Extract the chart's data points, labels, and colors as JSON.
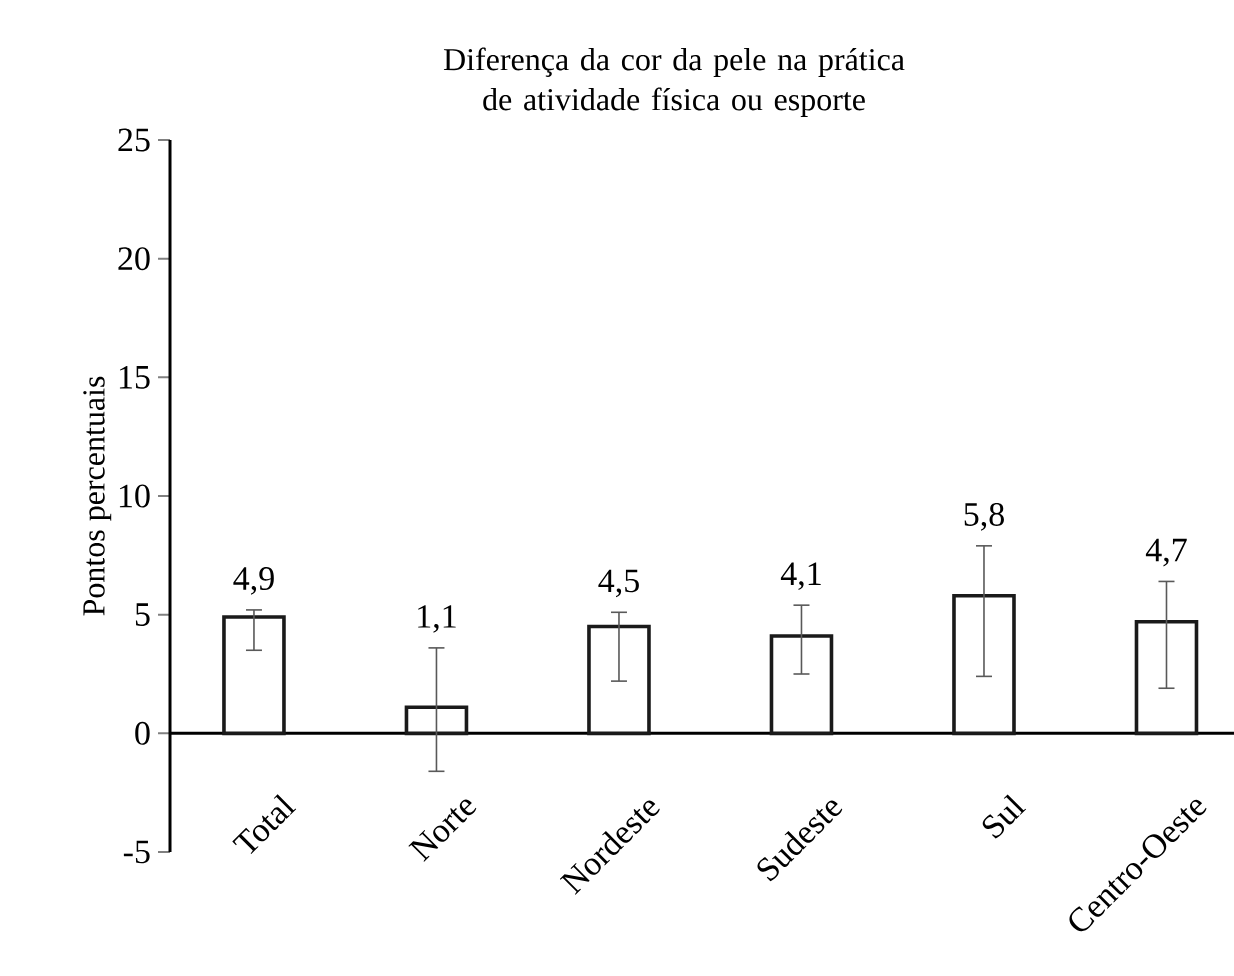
{
  "chart_data": {
    "type": "bar",
    "title": "Diferença da cor da pele na prática de atividade física ou esporte",
    "ylabel": "Pontos percentuais",
    "categories": [
      "Total",
      "Norte",
      "Nordeste",
      "Sudeste",
      "Sul",
      "Centro-Oeste"
    ],
    "values": [
      4.9,
      1.1,
      4.5,
      4.1,
      5.8,
      4.7
    ],
    "value_labels": [
      "4,9",
      "1,1",
      "4,5",
      "4,1",
      "5,8",
      "4,7"
    ],
    "errors": [
      [
        3.5,
        5.2
      ],
      [
        -1.6,
        3.6
      ],
      [
        2.2,
        5.1
      ],
      [
        2.5,
        5.4
      ],
      [
        2.4,
        7.9
      ],
      [
        1.9,
        6.4
      ]
    ],
    "color": "#1a1a1a",
    "ylim": [
      -5,
      25
    ],
    "yticks": [
      -5,
      0,
      5,
      10,
      15,
      20,
      25
    ]
  }
}
